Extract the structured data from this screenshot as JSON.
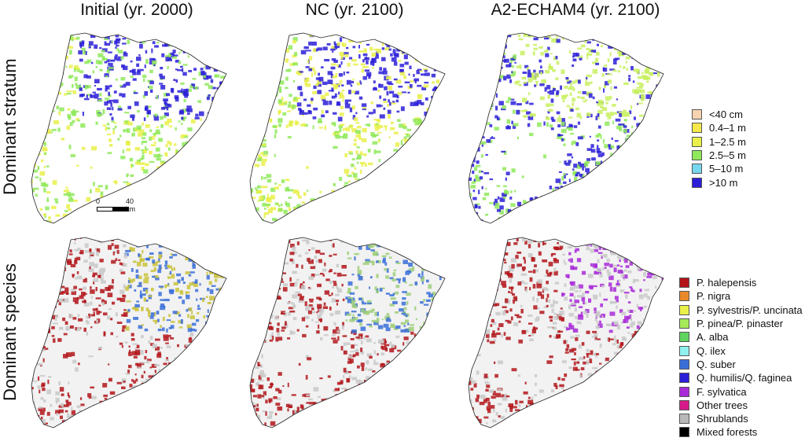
{
  "columns": [
    {
      "title": "Initial (yr. 2000)"
    },
    {
      "title": "NC (yr. 2100)"
    },
    {
      "title": "A2-ECHAM4 (yr. 2100)"
    }
  ],
  "rows": [
    {
      "title": "Dominant stratum"
    },
    {
      "title": "Dominant species"
    }
  ],
  "scale_bar": {
    "start_label": "0",
    "end_label": "40 km"
  },
  "legend_stratum": {
    "items": [
      {
        "label": "<40 cm",
        "color": "#f6d3b0"
      },
      {
        "label": "0.4–1 m",
        "color": "#f5e84a"
      },
      {
        "label": "1–2.5 m",
        "color": "#e9f04a"
      },
      {
        "label": "2.5–5 m",
        "color": "#8fe95a"
      },
      {
        "label": "5–10 m",
        "color": "#76d8ee"
      },
      {
        "label": ">10 m",
        "color": "#2b1fd8"
      }
    ]
  },
  "legend_species": {
    "items": [
      {
        "label": "P. halepensis",
        "color": "#b3161b"
      },
      {
        "label": "P. nigra",
        "color": "#e8892a"
      },
      {
        "label": "P. sylvestris/P. uncinata",
        "color": "#e9f04a"
      },
      {
        "label": "P. pinea/P. pinaster",
        "color": "#a6e95a"
      },
      {
        "label": "A. alba",
        "color": "#5fd45f"
      },
      {
        "label": "Q. ilex",
        "color": "#8ff0ef"
      },
      {
        "label": "Q. suber",
        "color": "#3a6fd8"
      },
      {
        "label": "Q. humilis/Q. faginea",
        "color": "#2b1fd8"
      },
      {
        "label": "F. sylvatica",
        "color": "#a82ad8"
      },
      {
        "label": "Other trees",
        "color": "#d61a8a"
      },
      {
        "label": "Shrublands",
        "color": "#b9b9b9"
      },
      {
        "label": "Mixed forests",
        "color": "#000000"
      }
    ]
  },
  "map_palettes": {
    "stratum": [
      {
        "dominant": "#2b1fd8",
        "secondary": "#8fe95a",
        "tertiary": "#e9f04a"
      },
      {
        "dominant": "#2b1fd8",
        "secondary": "#e9f04a",
        "tertiary": "#8fe95a"
      },
      {
        "dominant": "#c8f060",
        "secondary": "#2b1fd8",
        "tertiary": "#8fe95a"
      }
    ],
    "species": [
      {
        "dominant": "#b3161b",
        "secondary": "#3a6fd8",
        "tertiary": "#c9c23a"
      },
      {
        "dominant": "#b3161b",
        "secondary": "#3a6fd8",
        "tertiary": "#9fcf7a"
      },
      {
        "dominant": "#b3161b",
        "secondary": "#c9c9c9",
        "tertiary": "#a82ad8"
      }
    ]
  }
}
